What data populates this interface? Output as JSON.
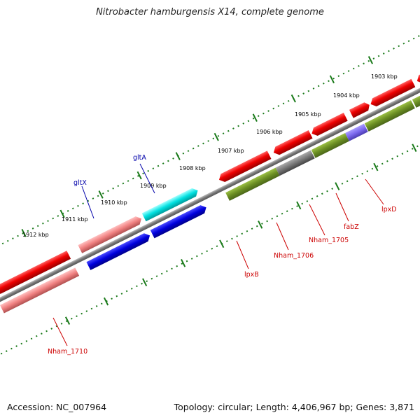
{
  "title": "Nitrobacter hamburgensis X14, complete genome",
  "ruler": {
    "ticks": [
      {
        "label": "1903 kbp",
        "kbp": 1903
      },
      {
        "label": "1904 kbp",
        "kbp": 1904
      },
      {
        "label": "1905 kbp",
        "kbp": 1905
      },
      {
        "label": "1906 kbp",
        "kbp": 1906
      },
      {
        "label": "1907 kbp",
        "kbp": 1907
      },
      {
        "label": "1908 kbp",
        "kbp": 1908
      },
      {
        "label": "1909 kbp",
        "kbp": 1909
      },
      {
        "label": "1910 kbp",
        "kbp": 1910
      },
      {
        "label": "1911 kbp",
        "kbp": 1911
      },
      {
        "label": "1912 kbp",
        "kbp": 1912
      }
    ]
  },
  "genes": [
    {
      "name": "lpxD",
      "color": "#cc0000"
    },
    {
      "name": "fabZ",
      "color": "#cc0000"
    },
    {
      "name": "Nham_1705",
      "color": "#cc0000"
    },
    {
      "name": "Nham_1706",
      "color": "#cc0000"
    },
    {
      "name": "lpxB",
      "color": "#cc0000"
    },
    {
      "name": "gltA",
      "color": "#0000aa"
    },
    {
      "name": "gltX",
      "color": "#0000aa"
    },
    {
      "name": "Nham_1710",
      "color": "#cc0000"
    }
  ],
  "colors": {
    "red": "#ee0000",
    "olive": "#6b8e23",
    "dark_blue": "#0000dd",
    "cyan": "#00dddd",
    "pink": "#f08080",
    "gray": "#777777",
    "purple": "#7b68ee",
    "ruler": "#1a7a1a"
  },
  "footer": {
    "accession": "Accession: NC_007964",
    "summary": "Topology: circular; Length: 4,406,967 bp; Genes: 3,871"
  }
}
